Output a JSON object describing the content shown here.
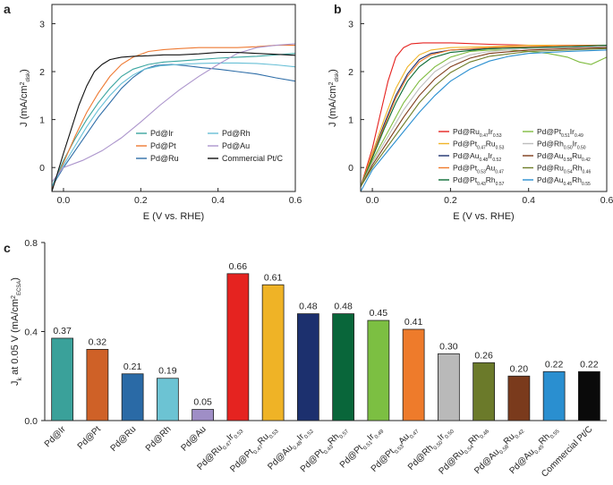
{
  "chart_data": [
    {
      "panel": "a",
      "type": "line",
      "xlabel": "E (V vs. RHE)",
      "ylabel_main": "J (mA/cm",
      "ylabel_sup": "2",
      "ylabel_sub": "disk",
      "ylabel_close": ")",
      "xlim": [
        -0.03,
        0.6
      ],
      "ylim": [
        -0.5,
        3.4
      ],
      "xticks": [
        0,
        0.2,
        0.4,
        0.6
      ],
      "xtick_labels": [
        "0.0",
        "0.2",
        "0.4",
        "0.6"
      ],
      "yticks": [
        0,
        1,
        2,
        3
      ],
      "ytick_labels": [
        "0",
        "1",
        "2",
        "3"
      ],
      "legend": "bottom-right",
      "series": [
        {
          "name": "Pd@Ir",
          "color": "#3aa5a0",
          "x": [
            -0.03,
            0.0,
            0.03,
            0.06,
            0.09,
            0.12,
            0.15,
            0.18,
            0.22,
            0.26,
            0.3,
            0.35,
            0.4,
            0.45,
            0.5,
            0.55,
            0.6
          ],
          "y": [
            -0.4,
            0.15,
            0.6,
            1.0,
            1.35,
            1.65,
            1.9,
            2.05,
            2.15,
            2.2,
            2.22,
            2.25,
            2.28,
            2.3,
            2.32,
            2.35,
            2.38
          ]
        },
        {
          "name": "Pd@Pt",
          "color": "#ee7a33",
          "x": [
            -0.03,
            0.0,
            0.03,
            0.06,
            0.09,
            0.12,
            0.15,
            0.18,
            0.22,
            0.26,
            0.3,
            0.35,
            0.4,
            0.45,
            0.5,
            0.55,
            0.6
          ],
          "y": [
            -0.45,
            0.1,
            0.65,
            1.15,
            1.55,
            1.9,
            2.15,
            2.3,
            2.42,
            2.46,
            2.48,
            2.5,
            2.5,
            2.5,
            2.52,
            2.55,
            2.55
          ]
        },
        {
          "name": "Pd@Ru",
          "color": "#2f6ea8",
          "x": [
            -0.03,
            0.0,
            0.03,
            0.06,
            0.09,
            0.12,
            0.15,
            0.18,
            0.21,
            0.24,
            0.28,
            0.32,
            0.36,
            0.4,
            0.45,
            0.5,
            0.55,
            0.6
          ],
          "y": [
            -0.4,
            0.0,
            0.35,
            0.7,
            1.05,
            1.35,
            1.65,
            1.88,
            2.05,
            2.13,
            2.15,
            2.12,
            2.08,
            2.05,
            2.0,
            1.95,
            1.87,
            1.8
          ]
        },
        {
          "name": "Pd@Rh",
          "color": "#67bfd6",
          "x": [
            -0.03,
            0.0,
            0.03,
            0.06,
            0.09,
            0.12,
            0.15,
            0.18,
            0.21,
            0.25,
            0.3,
            0.35,
            0.4,
            0.45,
            0.5,
            0.55,
            0.6
          ],
          "y": [
            -0.4,
            0.05,
            0.45,
            0.85,
            1.2,
            1.5,
            1.75,
            1.93,
            2.05,
            2.12,
            2.15,
            2.17,
            2.18,
            2.18,
            2.17,
            2.14,
            2.1
          ]
        },
        {
          "name": "Pd@Au",
          "color": "#ac95cc",
          "x": [
            -0.03,
            0.0,
            0.05,
            0.1,
            0.15,
            0.2,
            0.25,
            0.3,
            0.35,
            0.4,
            0.45,
            0.5,
            0.55,
            0.6
          ],
          "y": [
            -0.3,
            0.0,
            0.15,
            0.35,
            0.62,
            0.95,
            1.3,
            1.62,
            1.9,
            2.15,
            2.38,
            2.5,
            2.55,
            2.58
          ]
        },
        {
          "name": "Commercial Pt/C",
          "color": "#111111",
          "x": [
            -0.03,
            0.0,
            0.02,
            0.04,
            0.06,
            0.08,
            0.1,
            0.12,
            0.15,
            0.18,
            0.22,
            0.26,
            0.3,
            0.35,
            0.4,
            0.45,
            0.5,
            0.55,
            0.6
          ],
          "y": [
            -0.5,
            0.3,
            0.8,
            1.3,
            1.7,
            2.0,
            2.15,
            2.25,
            2.3,
            2.32,
            2.33,
            2.35,
            2.35,
            2.37,
            2.4,
            2.4,
            2.38,
            2.36,
            2.34
          ]
        }
      ]
    },
    {
      "panel": "b",
      "type": "line",
      "xlabel": "E (V vs. RHE)",
      "ylabel_main": "J (mA/cm",
      "ylabel_sup": "2",
      "ylabel_sub": "disk",
      "ylabel_close": ")",
      "xlim": [
        -0.03,
        0.6
      ],
      "ylim": [
        -0.5,
        3.4
      ],
      "xticks": [
        0,
        0.2,
        0.4,
        0.6
      ],
      "xtick_labels": [
        "0.0",
        "0.2",
        "0.4",
        "0.6"
      ],
      "yticks": [
        0,
        1,
        2,
        3
      ],
      "ytick_labels": [
        "0",
        "1",
        "2",
        "3"
      ],
      "legend": "bottom-right",
      "series": [
        {
          "name": "Pd@Ru0.47Ir0.53",
          "base": "Pd@Ru",
          "s1": "0.47",
          "e2": "Ir",
          "s2": "0.53",
          "color": "#e52320",
          "x": [
            -0.03,
            0.0,
            0.02,
            0.04,
            0.06,
            0.08,
            0.1,
            0.13,
            0.16,
            0.2,
            0.3,
            0.4,
            0.5,
            0.6
          ],
          "y": [
            -0.4,
            0.4,
            1.1,
            1.8,
            2.3,
            2.5,
            2.58,
            2.6,
            2.6,
            2.6,
            2.57,
            2.55,
            2.55,
            2.55
          ]
        },
        {
          "name": "Pd@Pt0.47Ru0.53",
          "base": "Pd@Pt",
          "s1": "0.47",
          "e2": "Ru",
          "s2": "0.53",
          "color": "#f0b427",
          "x": [
            -0.03,
            0.0,
            0.03,
            0.06,
            0.09,
            0.12,
            0.15,
            0.2,
            0.3,
            0.4,
            0.5,
            0.6
          ],
          "y": [
            -0.4,
            0.3,
            1.0,
            1.65,
            2.1,
            2.35,
            2.45,
            2.5,
            2.52,
            2.55,
            2.55,
            2.55
          ]
        },
        {
          "name": "Pd@Au0.48Ir0.52",
          "base": "Pd@Au",
          "s1": "0.48",
          "e2": "Ir",
          "s2": "0.52",
          "color": "#1b2f6e",
          "x": [
            -0.03,
            0.0,
            0.03,
            0.06,
            0.09,
            0.12,
            0.15,
            0.2,
            0.3,
            0.4,
            0.5,
            0.6
          ],
          "y": [
            -0.4,
            0.25,
            0.9,
            1.5,
            1.95,
            2.25,
            2.38,
            2.45,
            2.48,
            2.5,
            2.52,
            2.55
          ]
        },
        {
          "name": "Pd@Pt0.53Au0.47",
          "base": "Pd@Pt",
          "s1": "0.53",
          "e2": "Au",
          "s2": "0.47",
          "color": "#ef7a2b",
          "x": [
            -0.03,
            0.0,
            0.03,
            0.06,
            0.09,
            0.12,
            0.15,
            0.2,
            0.3,
            0.4,
            0.5,
            0.6
          ],
          "y": [
            -0.4,
            0.25,
            0.85,
            1.45,
            1.9,
            2.2,
            2.35,
            2.45,
            2.5,
            2.52,
            2.55,
            2.55
          ]
        },
        {
          "name": "Pd@Pt0.43Rh0.57",
          "base": "Pd@Pt",
          "s1": "0.43",
          "e2": "Rh",
          "s2": "0.57",
          "color": "#0b6b34",
          "x": [
            -0.03,
            0.0,
            0.03,
            0.06,
            0.09,
            0.12,
            0.15,
            0.2,
            0.3,
            0.4,
            0.5,
            0.6
          ],
          "y": [
            -0.4,
            0.2,
            0.8,
            1.35,
            1.8,
            2.1,
            2.28,
            2.4,
            2.48,
            2.5,
            2.52,
            2.55
          ]
        },
        {
          "name": "Pd@Pt0.51Ir0.49",
          "base": "Pd@Pt",
          "s1": "0.51",
          "e2": "Ir",
          "s2": "0.49",
          "color": "#7fbb3f",
          "x": [
            -0.03,
            0.0,
            0.04,
            0.08,
            0.12,
            0.16,
            0.2,
            0.25,
            0.3,
            0.35,
            0.4,
            0.45,
            0.5,
            0.53,
            0.56,
            0.6
          ],
          "y": [
            -0.4,
            0.15,
            0.75,
            1.35,
            1.8,
            2.1,
            2.3,
            2.42,
            2.45,
            2.45,
            2.42,
            2.38,
            2.3,
            2.2,
            2.15,
            2.3
          ]
        },
        {
          "name": "Pd@Rh0.50Ir0.50",
          "base": "Pd@Rh",
          "s1": "0.50",
          "e2": "Ir",
          "s2": "0.50",
          "color": "#bcbcbc",
          "x": [
            -0.03,
            0.0,
            0.04,
            0.08,
            0.12,
            0.16,
            0.2,
            0.25,
            0.3,
            0.4,
            0.5,
            0.6
          ],
          "y": [
            -0.4,
            0.1,
            0.65,
            1.2,
            1.65,
            2.0,
            2.2,
            2.35,
            2.42,
            2.48,
            2.5,
            2.52
          ]
        },
        {
          "name": "Pd@Au0.58Ru0.42",
          "base": "Pd@Au",
          "s1": "0.58",
          "e2": "Ru",
          "s2": "0.42",
          "color": "#7d3a18",
          "x": [
            -0.03,
            0.0,
            0.04,
            0.08,
            0.12,
            0.16,
            0.2,
            0.25,
            0.3,
            0.4,
            0.5,
            0.6
          ],
          "y": [
            -0.4,
            0.05,
            0.55,
            1.05,
            1.5,
            1.85,
            2.1,
            2.28,
            2.38,
            2.45,
            2.48,
            2.5
          ]
        },
        {
          "name": "Pd@Ru0.54Rh0.46",
          "base": "Pd@Ru",
          "s1": "0.54",
          "e2": "Rh",
          "s2": "0.46",
          "color": "#6e7d28",
          "x": [
            -0.03,
            0.0,
            0.04,
            0.08,
            0.12,
            0.16,
            0.2,
            0.25,
            0.3,
            0.4,
            0.5,
            0.6
          ],
          "y": [
            -0.4,
            0.0,
            0.45,
            0.9,
            1.35,
            1.7,
            1.98,
            2.2,
            2.32,
            2.42,
            2.45,
            2.48
          ]
        },
        {
          "name": "Pd@Au0.45Rh0.55",
          "base": "Pd@Au",
          "s1": "0.45",
          "e2": "Rh",
          "s2": "0.55",
          "color": "#2a8fd0",
          "x": [
            -0.03,
            0.0,
            0.04,
            0.08,
            0.12,
            0.16,
            0.2,
            0.25,
            0.3,
            0.35,
            0.4,
            0.5,
            0.6
          ],
          "y": [
            -0.5,
            -0.05,
            0.35,
            0.75,
            1.15,
            1.5,
            1.8,
            2.05,
            2.22,
            2.32,
            2.38,
            2.42,
            2.45
          ]
        }
      ]
    },
    {
      "panel": "c",
      "type": "bar",
      "ylabel_main": "J",
      "ylabel_sub": "k",
      "ylabel_rest": " at 0.05 V (mA/cm",
      "ylabel_sup": "2",
      "ylabel_sub2": "ECSA",
      "ylabel_close": ")",
      "ylim": [
        0,
        0.8
      ],
      "yticks": [
        0,
        0.4,
        0.8
      ],
      "ytick_labels": [
        "0.0",
        "0.4",
        "0.8"
      ],
      "bars": [
        {
          "label": "Pd@Ir",
          "value": 0.37,
          "value_label": "0.37",
          "color": "#3aa19a"
        },
        {
          "label": "Pd@Pt",
          "value": 0.32,
          "value_label": "0.32",
          "color": "#cf6127"
        },
        {
          "label": "Pd@Ru",
          "value": 0.21,
          "value_label": "0.21",
          "color": "#2a6aa6"
        },
        {
          "label": "Pd@Rh",
          "value": 0.19,
          "value_label": "0.19",
          "color": "#6cc3d3"
        },
        {
          "label": "Pd@Au",
          "value": 0.05,
          "value_label": "0.05",
          "color": "#9f8ec6"
        },
        {
          "label": "Pd@Ru0.47Ir0.53",
          "base": "Pd@Ru",
          "s1": "0.47",
          "e2": "Ir",
          "s2": "0.53",
          "value": 0.66,
          "value_label": "0.66",
          "color": "#e52320"
        },
        {
          "label": "Pd@Pt0.47Ru0.53",
          "base": "Pd@Pt",
          "s1": "0.47",
          "e2": "Ru",
          "s2": "0.53",
          "value": 0.61,
          "value_label": "0.61",
          "color": "#efb326"
        },
        {
          "label": "Pd@Au0.48Ir0.52",
          "base": "Pd@Au",
          "s1": "0.48",
          "e2": "Ir",
          "s2": "0.52",
          "value": 0.48,
          "value_label": "0.48",
          "color": "#1c306e"
        },
        {
          "label": "Pd@Pt0.43Rh0.57",
          "base": "Pd@Pt",
          "s1": "0.43",
          "e2": "Rh",
          "s2": "0.57",
          "value": 0.48,
          "value_label": "0.48",
          "color": "#09663a"
        },
        {
          "label": "Pd@Pt0.51Ir0.49",
          "base": "Pd@Pt",
          "s1": "0.51",
          "e2": "Ir",
          "s2": "0.49",
          "value": 0.45,
          "value_label": "0.45",
          "color": "#7cbf42"
        },
        {
          "label": "Pd@Pt0.53Au0.47",
          "base": "Pd@Pt",
          "s1": "0.53",
          "e2": "Au",
          "s2": "0.47",
          "value": 0.41,
          "value_label": "0.41",
          "color": "#ee7b2b"
        },
        {
          "label": "Pd@Rh0.50Ir0.50",
          "base": "Pd@Rh",
          "s1": "0.50",
          "e2": "Ir",
          "s2": "0.50",
          "value": 0.3,
          "value_label": "0.30",
          "color": "#b9b9b9"
        },
        {
          "label": "Pd@Ru0.54Rh0.46",
          "base": "Pd@Ru",
          "s1": "0.54",
          "e2": "Rh",
          "s2": "0.46",
          "value": 0.26,
          "value_label": "0.26",
          "color": "#6b7a2a"
        },
        {
          "label": "Pd@Au0.58Ru0.42",
          "base": "Pd@Au",
          "s1": "0.58",
          "e2": "Ru",
          "s2": "0.42",
          "value": 0.2,
          "value_label": "0.20",
          "color": "#7a3a1c"
        },
        {
          "label": "Pd@Au0.45Rh0.55",
          "base": "Pd@Au",
          "s1": "0.45",
          "e2": "Rh",
          "s2": "0.55",
          "value": 0.22,
          "value_label": "0.22",
          "color": "#2a8fd0"
        },
        {
          "label": "Commercial Pt/C",
          "value": 0.22,
          "value_label": "0.22",
          "color": "#0a0a0a"
        }
      ]
    }
  ]
}
